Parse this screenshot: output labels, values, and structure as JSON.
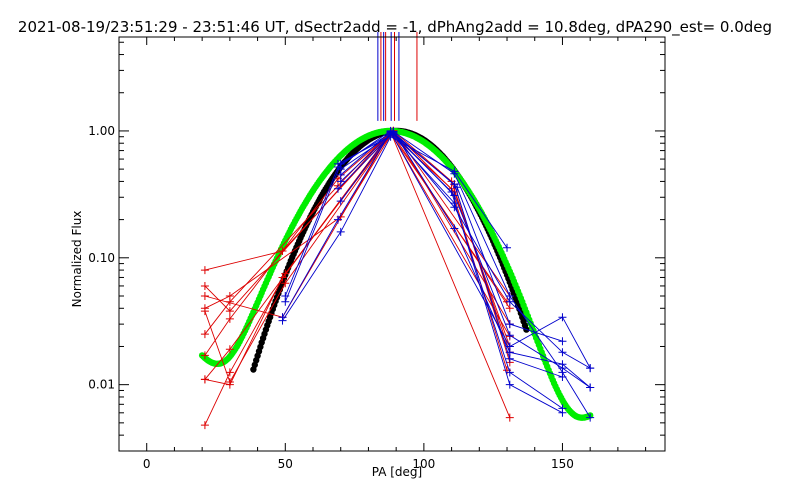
{
  "chart_data": {
    "type": "line",
    "title": "2021-08-19/23:51:29 - 23:51:46 UT, dSectr2add = -1, dPhAng2add = 10.8deg, dPA290_est=  0.0deg",
    "xlabel": "PA [deg]",
    "ylabel": "Normalized Flux",
    "xlim": [
      -10,
      187
    ],
    "ylim": [
      0.003,
      5.5
    ],
    "yscale": "log",
    "grid": false,
    "xticks": [
      {
        "value": 0,
        "label": "0"
      },
      {
        "value": 50,
        "label": "50"
      },
      {
        "value": 100,
        "label": "100"
      },
      {
        "value": 150,
        "label": "150"
      }
    ],
    "yticks": [
      {
        "value": 0.01,
        "label": "0.01"
      },
      {
        "value": 0.1,
        "label": "0.10"
      },
      {
        "value": 1,
        "label": "1.00"
      }
    ],
    "colors": {
      "red": "#dd0000",
      "blue": "#0000cc",
      "green": "#00ee00",
      "black": "#000000"
    },
    "vertical_markers": {
      "red": [
        84.5,
        86.2,
        89.4,
        97.5
      ],
      "blue": [
        83.4,
        85.5,
        88.2,
        91.0
      ],
      "ymin": 1.2
    },
    "curves": [
      {
        "color": "black",
        "x_range": [
          38.5,
          137
        ],
        "peak_x": 90,
        "sigma": 17.5
      },
      {
        "color": "green",
        "x_range": [
          20,
          160
        ],
        "peak_x": 88,
        "sigma": 19,
        "background_a": 0.0155,
        "background_k": 0.075,
        "background_x0": 20
      }
    ],
    "series": [
      {
        "color": "red",
        "points": [
          [
            21,
            0.08
          ],
          [
            49,
            0.113
          ],
          [
            88,
            0.95
          ],
          [
            130,
            0.045
          ]
        ]
      },
      {
        "color": "red",
        "points": [
          [
            21,
            0.05
          ],
          [
            49,
            0.034
          ],
          [
            88,
            0.98
          ],
          [
            131,
            0.0055
          ]
        ]
      },
      {
        "color": "red",
        "points": [
          [
            21,
            0.04
          ],
          [
            30,
            0.05
          ],
          [
            70,
            0.21
          ],
          [
            89,
            1.0
          ],
          [
            131,
            0.05
          ]
        ]
      },
      {
        "color": "red",
        "points": [
          [
            21,
            0.025
          ],
          [
            30,
            0.045
          ],
          [
            69,
            0.37
          ],
          [
            88,
            0.99
          ],
          [
            131,
            0.04
          ]
        ]
      },
      {
        "color": "red",
        "points": [
          [
            21,
            0.017
          ],
          [
            30,
            0.033
          ],
          [
            69,
            0.42
          ],
          [
            89,
            1.0
          ],
          [
            131,
            0.03
          ]
        ]
      },
      {
        "color": "red",
        "points": [
          [
            21,
            0.011
          ],
          [
            30,
            0.019
          ],
          [
            88,
            0.97
          ],
          [
            131,
            0.024
          ]
        ]
      },
      {
        "color": "red",
        "points": [
          [
            21,
            0.0048
          ],
          [
            30,
            0.0125
          ],
          [
            50,
            0.075
          ],
          [
            89,
            0.99
          ],
          [
            111,
            0.33
          ],
          [
            131,
            0.02
          ]
        ]
      },
      {
        "color": "red",
        "points": [
          [
            21,
            0.011
          ],
          [
            30,
            0.01
          ],
          [
            49,
            0.07
          ],
          [
            88,
            0.96
          ],
          [
            110,
            0.35
          ],
          [
            130,
            0.013
          ]
        ]
      },
      {
        "color": "red",
        "points": [
          [
            21,
            0.06
          ],
          [
            30,
            0.038
          ],
          [
            88,
            0.99
          ],
          [
            111,
            0.38
          ],
          [
            131,
            0.015
          ]
        ]
      },
      {
        "color": "red",
        "points": [
          [
            21,
            0.038
          ],
          [
            30,
            0.0105
          ],
          [
            50,
            0.063
          ],
          [
            89,
            1.0
          ],
          [
            110,
            0.4
          ],
          [
            131,
            0.018
          ]
        ]
      },
      {
        "color": "blue",
        "points": [
          [
            49,
            0.034
          ],
          [
            69,
            0.2
          ],
          [
            88,
            0.98
          ],
          [
            131,
            0.02
          ],
          [
            150,
            0.034
          ],
          [
            160,
            0.0135
          ]
        ]
      },
      {
        "color": "blue",
        "points": [
          [
            49,
            0.032
          ],
          [
            70,
            0.16
          ],
          [
            88,
            0.9
          ],
          [
            111,
            0.48
          ],
          [
            130,
            0.12
          ]
        ]
      },
      {
        "color": "blue",
        "points": [
          [
            50,
            0.045
          ],
          [
            70,
            0.55
          ],
          [
            89,
            0.99
          ],
          [
            111,
            0.46
          ],
          [
            131,
            0.05
          ],
          [
            150,
            0.0125
          ],
          [
            160,
            0.0055
          ]
        ]
      },
      {
        "color": "blue",
        "points": [
          [
            50,
            0.05
          ],
          [
            69,
            0.52
          ],
          [
            88,
            1.0
          ],
          [
            111,
            0.25
          ],
          [
            131,
            0.045
          ],
          [
            150,
            0.018
          ],
          [
            160,
            0.0135
          ]
        ]
      },
      {
        "color": "blue",
        "points": [
          [
            70,
            0.4
          ],
          [
            89,
            0.99
          ],
          [
            111,
            0.17
          ],
          [
            131,
            0.018
          ],
          [
            150,
            0.0145
          ],
          [
            160,
            0.0095
          ]
        ]
      },
      {
        "color": "blue",
        "points": [
          [
            69,
            0.35
          ],
          [
            89,
            0.97
          ],
          [
            112,
            0.36
          ],
          [
            131,
            0.03
          ],
          [
            150,
            0.022
          ]
        ]
      },
      {
        "color": "blue",
        "points": [
          [
            70,
            0.28
          ],
          [
            88,
            0.96
          ],
          [
            111,
            0.27
          ],
          [
            131,
            0.0125
          ],
          [
            150,
            0.0065
          ]
        ]
      },
      {
        "color": "blue",
        "points": [
          [
            69,
            0.55
          ],
          [
            89,
            0.94
          ],
          [
            110,
            0.33
          ],
          [
            131,
            0.01
          ],
          [
            150,
            0.006
          ]
        ]
      },
      {
        "color": "blue",
        "points": [
          [
            70,
            0.45
          ],
          [
            88,
            0.99
          ],
          [
            111,
            0.38
          ],
          [
            131,
            0.016
          ],
          [
            150,
            0.0115
          ]
        ]
      },
      {
        "color": "blue",
        "points": [
          [
            70,
            0.5
          ],
          [
            89,
            0.96
          ],
          [
            111,
            0.31
          ],
          [
            131,
            0.0245
          ],
          [
            150,
            0.0135
          ],
          [
            160,
            0.0095
          ]
        ]
      }
    ]
  }
}
